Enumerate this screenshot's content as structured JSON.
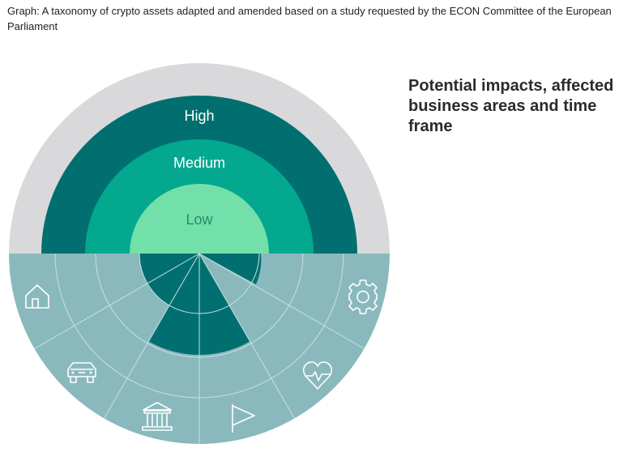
{
  "caption": "Graph: A taxonomy of crypto assets adapted and amended based on a study requested by the ECON Committee of the European Parliament",
  "side_title": "Potential impacts, affected business areas and time frame",
  "impact_levels": [
    {
      "label": "High",
      "color": "#016f70"
    },
    {
      "label": "Medium",
      "color": "#03a88f"
    },
    {
      "label": "Low",
      "color": "#73e0a9"
    }
  ],
  "colors": {
    "outer_ring": "#d9d9db",
    "lower_disc": "#8ab9bd",
    "wedge": "#016f70",
    "lines": "#c9e0e2",
    "icon": "#ffffff"
  },
  "business_areas": [
    {
      "icon": "home-icon"
    },
    {
      "icon": "car-icon"
    },
    {
      "icon": "bank-icon"
    },
    {
      "icon": "flag-icon"
    },
    {
      "icon": "heart-pulse-icon"
    },
    {
      "icon": "gear-icon"
    }
  ]
}
